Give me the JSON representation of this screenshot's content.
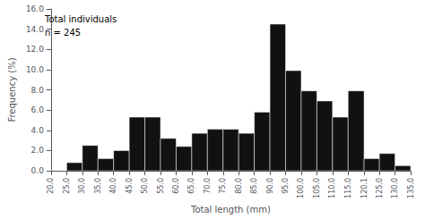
{
  "chart_data": {
    "type": "histogram",
    "bins": [
      20.0,
      25.0,
      30.0,
      35.0,
      40.0,
      45.0,
      50.0,
      55.0,
      60.0,
      65.0,
      70.0,
      75.0,
      80.0,
      85.0,
      90.0,
      95.0,
      100.0,
      105.0,
      110.0,
      115.0,
      120.1,
      125.0,
      130.0,
      135.0
    ],
    "values": [
      0.0,
      0.8,
      2.5,
      1.2,
      2.0,
      5.3,
      5.3,
      3.2,
      2.4,
      3.7,
      4.1,
      4.1,
      3.7,
      5.8,
      14.5,
      9.9,
      7.9,
      6.9,
      5.3,
      7.9,
      1.2,
      1.7,
      0.5
    ],
    "color": "#111111",
    "xlabel": "Total length (mm)",
    "ylabel": "Frequency (%)",
    "xlim": [
      20.0,
      135.0
    ],
    "xticks": [
      {
        "value": 20.0,
        "label": "20.0"
      },
      {
        "value": 25.0,
        "label": "25.0"
      },
      {
        "value": 30.0,
        "label": "30.0"
      },
      {
        "value": 35.0,
        "label": "35.0"
      },
      {
        "value": 40.0,
        "label": "40.0"
      },
      {
        "value": 45.0,
        "label": "45.0"
      },
      {
        "value": 50.0,
        "label": "50.0"
      },
      {
        "value": 55.0,
        "label": "55.0"
      },
      {
        "value": 60.0,
        "label": "60.0"
      },
      {
        "value": 65.0,
        "label": "65.0"
      },
      {
        "value": 70.0,
        "label": "70.0"
      },
      {
        "value": 75.0,
        "label": "75.0"
      },
      {
        "value": 80.0,
        "label": "80.0"
      },
      {
        "value": 85.0,
        "label": "85.0"
      },
      {
        "value": 90.0,
        "label": "90.0"
      },
      {
        "value": 95.0,
        "label": "95.0"
      },
      {
        "value": 100.0,
        "label": "100.0"
      },
      {
        "value": 105.0,
        "label": "105.0"
      },
      {
        "value": 110.0,
        "label": "110.0"
      },
      {
        "value": 115.0,
        "label": "115.0"
      },
      {
        "value": 120.1,
        "label": "120.1"
      },
      {
        "value": 125.0,
        "label": "125.0"
      },
      {
        "value": 130.0,
        "label": "130.0"
      },
      {
        "value": 135.0,
        "label": "135.0"
      }
    ],
    "ylim": [
      0,
      16.0
    ],
    "yticks": [
      {
        "value": 0.0,
        "label": "0.0"
      },
      {
        "value": 2.0,
        "label": "2.0"
      },
      {
        "value": 4.0,
        "label": "4.0"
      },
      {
        "value": 6.0,
        "label": "6.0"
      },
      {
        "value": 8.0,
        "label": "8.0"
      },
      {
        "value": 10.0,
        "label": "10.0"
      },
      {
        "value": 12.0,
        "label": "12.0"
      },
      {
        "value": 14.0,
        "label": "14.0"
      },
      {
        "value": 16.0,
        "label": "16.0"
      }
    ],
    "annotations": [
      "Total individuals",
      "n = 245"
    ],
    "grid": false
  }
}
